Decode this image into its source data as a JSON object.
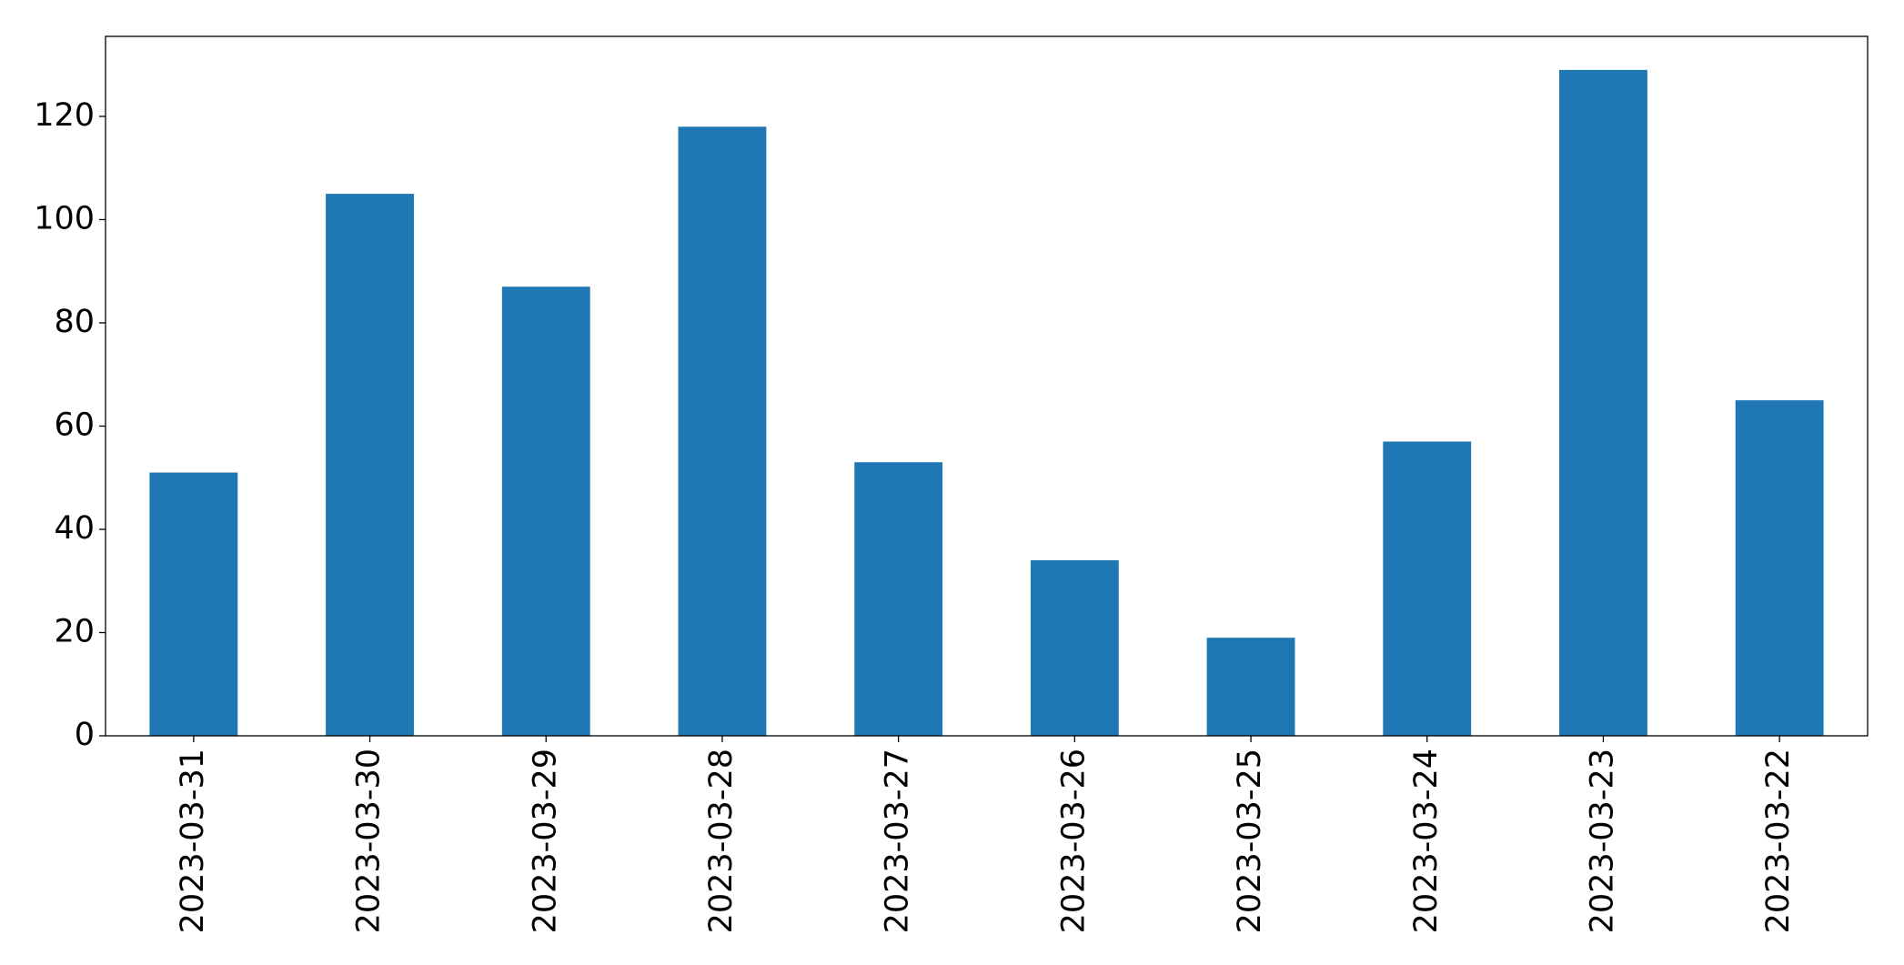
{
  "chart_data": {
    "type": "bar",
    "categories": [
      "2023-03-31",
      "2023-03-30",
      "2023-03-29",
      "2023-03-28",
      "2023-03-27",
      "2023-03-26",
      "2023-03-25",
      "2023-03-24",
      "2023-03-23",
      "2023-03-22"
    ],
    "values": [
      51,
      105,
      87,
      118,
      53,
      34,
      19,
      57,
      129,
      65
    ],
    "color": "#1f77b4",
    "ylim": [
      0,
      135.5
    ],
    "yticks": [
      0,
      20,
      40,
      60,
      80,
      100,
      120
    ],
    "grid": false
  }
}
